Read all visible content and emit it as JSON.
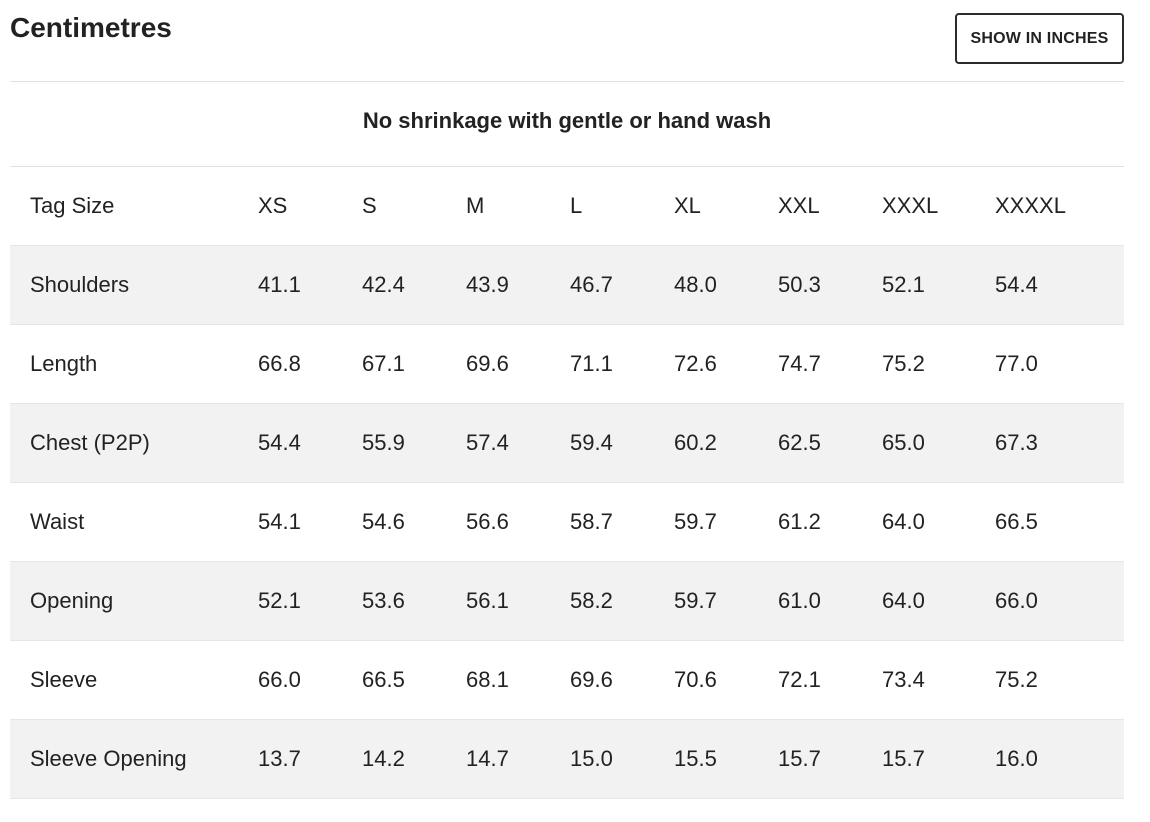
{
  "header": {
    "title": "Centimetres",
    "toggle_label": "SHOW IN INCHES"
  },
  "note": "No shrinkage with gentle or hand wash",
  "table": {
    "header": [
      "Tag Size",
      "XS",
      "S",
      "M",
      "L",
      "XL",
      "XXL",
      "XXXL",
      "XXXXL"
    ],
    "rows": [
      [
        "Shoulders",
        "41.1",
        "42.4",
        "43.9",
        "46.7",
        "48.0",
        "50.3",
        "52.1",
        "54.4"
      ],
      [
        "Length",
        "66.8",
        "67.1",
        "69.6",
        "71.1",
        "72.6",
        "74.7",
        "75.2",
        "77.0"
      ],
      [
        "Chest (P2P)",
        "54.4",
        "55.9",
        "57.4",
        "59.4",
        "60.2",
        "62.5",
        "65.0",
        "67.3"
      ],
      [
        "Waist",
        "54.1",
        "54.6",
        "56.6",
        "58.7",
        "59.7",
        "61.2",
        "64.0",
        "66.5"
      ],
      [
        "Opening",
        "52.1",
        "53.6",
        "56.1",
        "58.2",
        "59.7",
        "61.0",
        "64.0",
        "66.0"
      ],
      [
        "Sleeve",
        "66.0",
        "66.5",
        "68.1",
        "69.6",
        "70.6",
        "72.1",
        "73.4",
        "75.2"
      ],
      [
        "Sleeve Opening",
        "13.7",
        "14.2",
        "14.7",
        "15.0",
        "15.5",
        "15.7",
        "15.7",
        "16.0"
      ]
    ]
  },
  "colors": {
    "text": "#222222",
    "row_shade": "#f2f2f2",
    "divider": "#e2e2e2",
    "button_border": "#2b2b2b"
  }
}
